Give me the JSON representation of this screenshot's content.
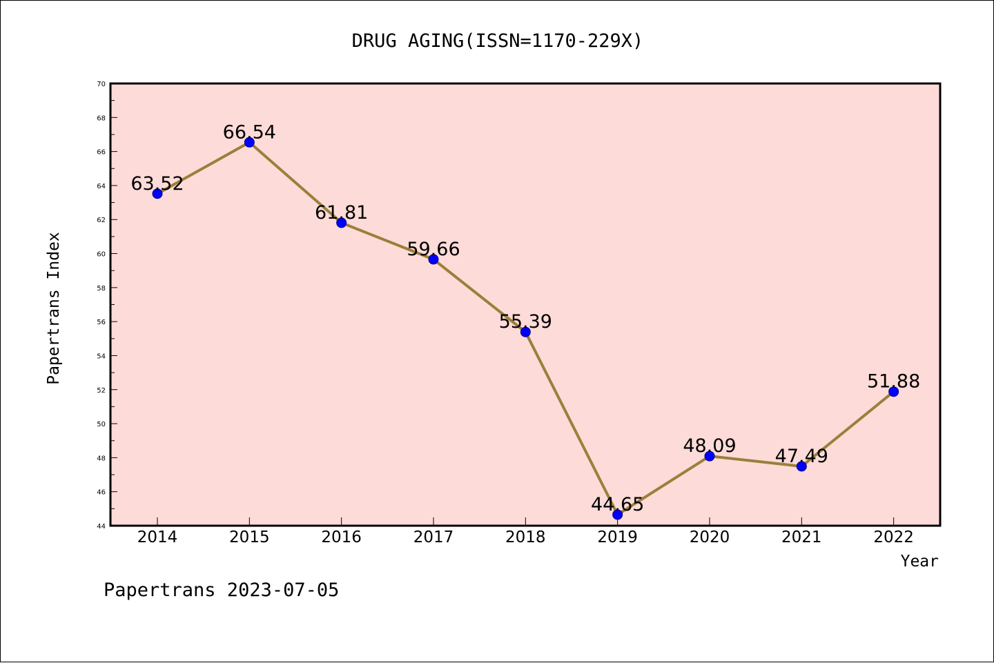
{
  "chart_data": {
    "type": "line",
    "title": "DRUG AGING(ISSN=1170-229X)",
    "xlabel": "Year",
    "ylabel": "Papertrans Index",
    "categories": [
      "2014",
      "2015",
      "2016",
      "2017",
      "2018",
      "2019",
      "2020",
      "2021",
      "2022"
    ],
    "values": [
      63.52,
      66.54,
      61.81,
      59.66,
      55.39,
      44.65,
      48.09,
      47.49,
      51.88
    ],
    "data_labels": [
      "63.52",
      "66.54",
      "61.81",
      "59.66",
      "55.39",
      "44.65",
      "48.09",
      "47.49",
      "51.88"
    ],
    "ylim": [
      44,
      70
    ],
    "yticks": [
      44,
      46,
      48,
      50,
      52,
      54,
      56,
      58,
      60,
      62,
      64,
      66,
      68,
      70
    ],
    "grid": false,
    "legend": "none",
    "colors": {
      "plot_background": "#fddbd8",
      "line": "#9b7f3b",
      "marker": "#0000ff",
      "marker_edge": "#00008b",
      "text": "#000000"
    }
  },
  "footer": {
    "watermark": "Papertrans 2023-07-05"
  }
}
